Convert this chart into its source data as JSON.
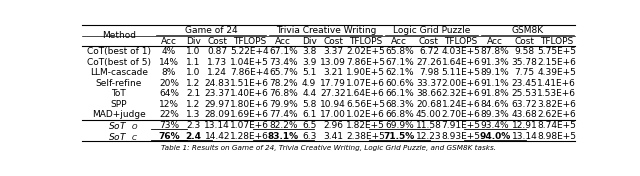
{
  "caption": "Table 1: Results on Game of 24, Trivia Creative Writing, Logic Grid Puzzle, and GSM8K tasks.",
  "groups": [
    {
      "name": "Game of 24",
      "subcols": [
        "Acc",
        "Div",
        "Cost",
        "TFLOPS"
      ]
    },
    {
      "name": "Trivia Creative Writing",
      "subcols": [
        "Acc",
        "Div",
        "Cost",
        "TFLOPS"
      ]
    },
    {
      "name": "Logic Grid Puzzle",
      "subcols": [
        "Acc",
        "Cost",
        "TFLOPS"
      ]
    },
    {
      "name": "GSM8K",
      "subcols": [
        "Acc",
        "Cost",
        "TFLOPS"
      ]
    }
  ],
  "methods": [
    "CoT(best of 1)",
    "CoT(best of 5)",
    "LLM-cascade",
    "Self-refine",
    "ToT",
    "SPP",
    "MAD+judge",
    "SoT_O",
    "SoT_C"
  ],
  "data": [
    [
      "4%",
      "1.0",
      "0.87",
      "5.22E+4",
      "67.1%",
      "3.8",
      "3.37",
      "2.02E+5",
      "65.8%",
      "6.72",
      "4.03E+5",
      "87.8%",
      "9.58",
      "5.75E+5"
    ],
    [
      "14%",
      "1.1",
      "1.73",
      "1.04E+5",
      "73.4%",
      "3.9",
      "13.09",
      "7.86E+5",
      "67.1%",
      "27.26",
      "1.64E+6",
      "91.3%",
      "35.78",
      "2.15E+6"
    ],
    [
      "8%",
      "1.0",
      "1.24",
      "7.86E+4",
      "65.7%",
      "5.1",
      "3.21",
      "1.90E+5",
      "62.1%",
      "7.98",
      "5.11E+5",
      "89.1%",
      "7.75",
      "4.39E+5"
    ],
    [
      "20%",
      "1.2",
      "24.83",
      "1.51E+6",
      "78.2%",
      "4.9",
      "17.79",
      "1.07E+6",
      "60.6%",
      "33.37",
      "2.00E+6",
      "91.1%",
      "23.45",
      "1.41E+6"
    ],
    [
      "64%",
      "2.1",
      "23.37",
      "1.40E+6",
      "76.8%",
      "4.4",
      "27.32",
      "1.64E+6",
      "66.1%",
      "38.66",
      "2.32E+6",
      "91.8%",
      "25.53",
      "1.53E+6"
    ],
    [
      "12%",
      "1.2",
      "29.97",
      "1.80E+6",
      "79.9%",
      "5.8",
      "10.94",
      "6.56E+5",
      "68.3%",
      "20.68",
      "1.24E+6",
      "84.6%",
      "63.72",
      "3.82E+6"
    ],
    [
      "22%",
      "1.3",
      "28.09",
      "1.69E+6",
      "77.4%",
      "6.1",
      "17.00",
      "1.02E+6",
      "66.8%",
      "45.00",
      "2.70E+6",
      "89.3%",
      "43.68",
      "2.62E+6"
    ],
    [
      "73%",
      "2.3",
      "13.14",
      "1.07E+6",
      "82.2%",
      "6.5",
      "2.96",
      "1.82E+5",
      "69.9%",
      "11.58",
      "7.91E+5",
      "93.4%",
      "12.91",
      "8.74E+5"
    ],
    [
      "76%",
      "2.4",
      "14.42",
      "1.28E+6",
      "83.1%",
      "6.3",
      "3.41",
      "2.38E+5",
      "71.5%",
      "12.23",
      "8.93E+5",
      "94.0%",
      "13.14",
      "8.98E+5"
    ]
  ],
  "bold_data_cols": {
    "8": [
      0,
      1,
      4,
      8,
      11
    ]
  },
  "underline_data_cols": {
    "7": [
      0,
      4,
      8,
      11
    ],
    "8": [
      0,
      1,
      4,
      8,
      11
    ]
  },
  "separator_after_row": 6,
  "background_color": "#ffffff",
  "text_color": "#000000",
  "font_size": 6.5,
  "caption_font_size": 5.2
}
